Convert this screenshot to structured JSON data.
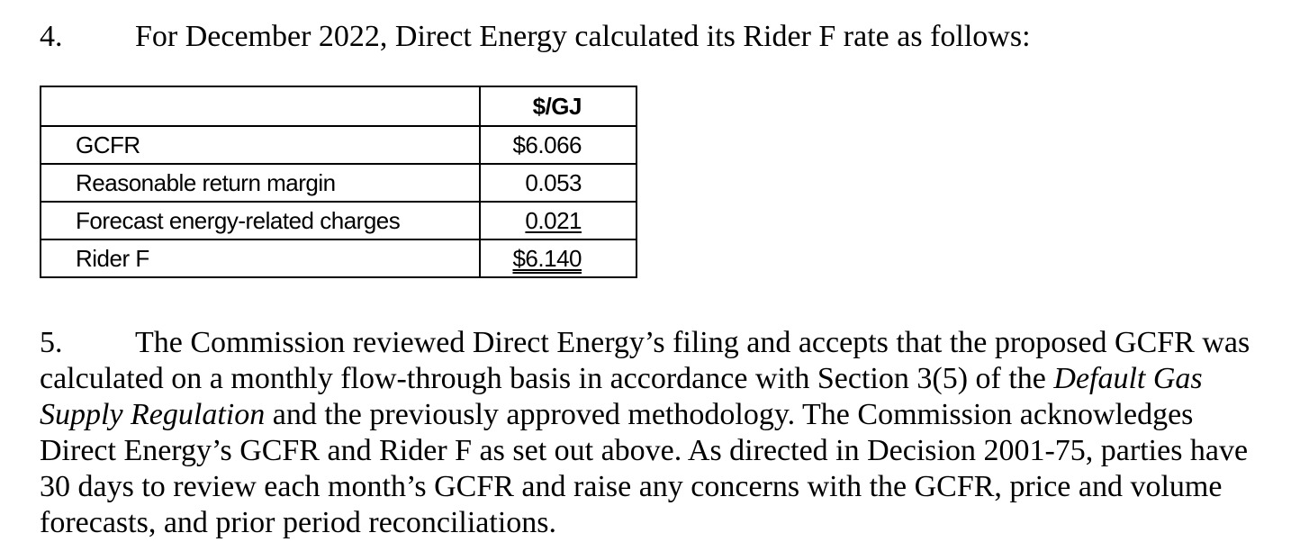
{
  "paragraph4": {
    "number": "4.",
    "text": "For December 2022, Direct Energy calculated its Rider F rate as follows:"
  },
  "table": {
    "header": {
      "label": "",
      "value": "$/GJ"
    },
    "rows": [
      {
        "label": "GCFR",
        "value": "$6.066",
        "underline": "none"
      },
      {
        "label": "Reasonable return margin",
        "value": "0.053",
        "underline": "none"
      },
      {
        "label": "Forecast energy-related charges",
        "value": "0.021",
        "underline": "single"
      },
      {
        "label": "Rider F",
        "value": "$6.140",
        "underline": "double"
      }
    ]
  },
  "paragraph5": {
    "number": "5.",
    "text_1": "The Commission reviewed Direct Energy’s filing and accepts that the proposed GCFR was calculated on a monthly flow-through basis in accordance with Section 3(5) of the ",
    "italic_1": "Default Gas Supply Regulation",
    "text_2": " and the previously approved methodology. The Commission acknowledges Direct Energy’s GCFR and Rider F as set out above. As directed in Decision 2001-75, parties have 30 days to review each month’s GCFR and raise any concerns with the GCFR, price and volume forecasts, and prior period reconciliations."
  }
}
